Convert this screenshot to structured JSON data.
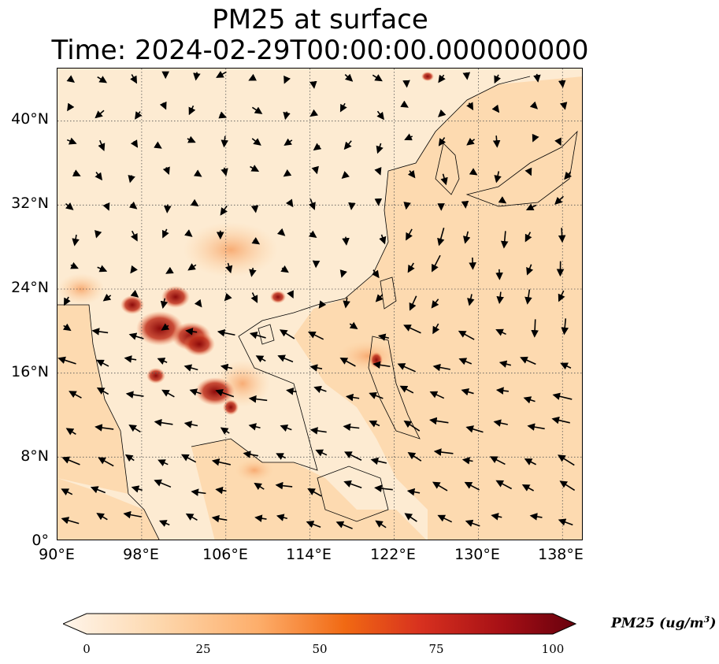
{
  "title_line1": "PM25 at surface",
  "title_line2": "Time: 2024-02-29T00:00:00.000000000",
  "lat_ticks": [
    "40°N",
    "32°N",
    "24°N",
    "16°N",
    "8°N",
    "0°"
  ],
  "lon_ticks": [
    "90°E",
    "98°E",
    "106°E",
    "114°E",
    "122°E",
    "130°E",
    "138°E"
  ],
  "colorbar": {
    "ticks": [
      "0",
      "25",
      "50",
      "75",
      "100"
    ],
    "label": "PM25 (ug/m",
    "label_sup": "3",
    "label_end": ")",
    "colors": [
      "#fff5eb",
      "#fdd9b0",
      "#fdae6b",
      "#f16913",
      "#d7301f",
      "#a50f15",
      "#67000d"
    ]
  },
  "map": {
    "extent": {
      "lon": [
        90,
        140
      ],
      "lat": [
        0,
        45
      ]
    },
    "land_color": "#fdebd2",
    "ocean_color": "#fddab0",
    "hotspot_color": "#b71c10",
    "coast_color": "#000000",
    "grid_style": "dotted"
  }
}
